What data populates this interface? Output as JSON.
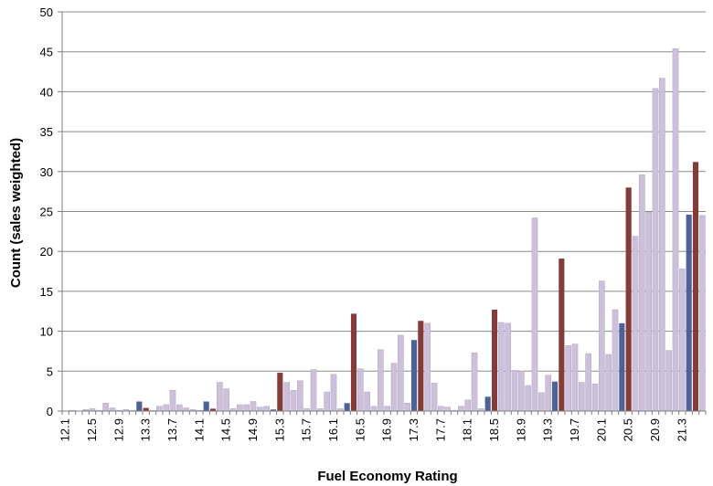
{
  "chart_data": {
    "type": "bar",
    "xlabel": "Fuel Economy Rating",
    "ylabel": "Count (sales weighted)",
    "ylim": [
      0,
      50
    ],
    "y_ticks": [
      0,
      5,
      10,
      15,
      20,
      25,
      30,
      35,
      40,
      45,
      50
    ],
    "x_tick_labels": [
      "12.1",
      "12.5",
      "12.9",
      "13.3",
      "13.7",
      "14.1",
      "14.5",
      "14.9",
      "15.3",
      "15.7",
      "16.1",
      "16.5",
      "16.9",
      "17.3",
      "17.7",
      "18.1",
      "18.5",
      "18.9",
      "19.3",
      "19.7",
      "20.1",
      "20.5",
      "20.9",
      "21.3"
    ],
    "grid": "horizontal",
    "legend": "none",
    "colors": {
      "light": "#ccc0da",
      "blue": "#4f6199",
      "red": "#843c39",
      "grid": "#8c8c8c",
      "axis": "#7f7f7f"
    },
    "bars": [
      {
        "v": 0,
        "c": "light"
      },
      {
        "v": 0.1,
        "c": "light"
      },
      {
        "v": 0,
        "c": "light"
      },
      {
        "v": 0.2,
        "c": "light"
      },
      {
        "v": 0.3,
        "c": "light"
      },
      {
        "v": 0.1,
        "c": "light"
      },
      {
        "v": 1.0,
        "c": "light"
      },
      {
        "v": 0.4,
        "c": "light"
      },
      {
        "v": 0.1,
        "c": "light"
      },
      {
        "v": 0.2,
        "c": "light"
      },
      {
        "v": 0.1,
        "c": "light"
      },
      {
        "v": 1.2,
        "c": "blue"
      },
      {
        "v": 0.4,
        "c": "red"
      },
      {
        "v": 0.1,
        "c": "light"
      },
      {
        "v": 0.6,
        "c": "light"
      },
      {
        "v": 0.8,
        "c": "light"
      },
      {
        "v": 2.6,
        "c": "light"
      },
      {
        "v": 0.8,
        "c": "light"
      },
      {
        "v": 0.4,
        "c": "light"
      },
      {
        "v": 0.2,
        "c": "light"
      },
      {
        "v": 0.1,
        "c": "light"
      },
      {
        "v": 1.2,
        "c": "blue"
      },
      {
        "v": 0.3,
        "c": "red"
      },
      {
        "v": 3.6,
        "c": "light"
      },
      {
        "v": 2.8,
        "c": "light"
      },
      {
        "v": 0.3,
        "c": "light"
      },
      {
        "v": 0.8,
        "c": "light"
      },
      {
        "v": 0.8,
        "c": "light"
      },
      {
        "v": 1.2,
        "c": "light"
      },
      {
        "v": 0.5,
        "c": "light"
      },
      {
        "v": 0.6,
        "c": "light"
      },
      {
        "v": 0.2,
        "c": "blue"
      },
      {
        "v": 4.8,
        "c": "red"
      },
      {
        "v": 3.6,
        "c": "light"
      },
      {
        "v": 2.6,
        "c": "light"
      },
      {
        "v": 3.8,
        "c": "light"
      },
      {
        "v": 0.3,
        "c": "light"
      },
      {
        "v": 5.2,
        "c": "light"
      },
      {
        "v": 0.3,
        "c": "light"
      },
      {
        "v": 2.4,
        "c": "light"
      },
      {
        "v": 4.6,
        "c": "light"
      },
      {
        "v": 0.3,
        "c": "light"
      },
      {
        "v": 1.0,
        "c": "blue"
      },
      {
        "v": 12.2,
        "c": "red"
      },
      {
        "v": 5.3,
        "c": "light"
      },
      {
        "v": 2.4,
        "c": "light"
      },
      {
        "v": 0.6,
        "c": "light"
      },
      {
        "v": 7.7,
        "c": "light"
      },
      {
        "v": 0.6,
        "c": "light"
      },
      {
        "v": 6.0,
        "c": "light"
      },
      {
        "v": 9.5,
        "c": "light"
      },
      {
        "v": 1.0,
        "c": "light"
      },
      {
        "v": 8.9,
        "c": "blue"
      },
      {
        "v": 11.3,
        "c": "red"
      },
      {
        "v": 11.0,
        "c": "light"
      },
      {
        "v": 3.5,
        "c": "light"
      },
      {
        "v": 0.6,
        "c": "light"
      },
      {
        "v": 0.5,
        "c": "light"
      },
      {
        "v": 0.1,
        "c": "light"
      },
      {
        "v": 0.6,
        "c": "light"
      },
      {
        "v": 1.4,
        "c": "light"
      },
      {
        "v": 7.3,
        "c": "light"
      },
      {
        "v": 0.3,
        "c": "light"
      },
      {
        "v": 1.8,
        "c": "blue"
      },
      {
        "v": 12.7,
        "c": "red"
      },
      {
        "v": 11.1,
        "c": "light"
      },
      {
        "v": 11.0,
        "c": "light"
      },
      {
        "v": 5.1,
        "c": "light"
      },
      {
        "v": 5.0,
        "c": "light"
      },
      {
        "v": 3.2,
        "c": "light"
      },
      {
        "v": 24.2,
        "c": "light"
      },
      {
        "v": 2.3,
        "c": "light"
      },
      {
        "v": 4.5,
        "c": "light"
      },
      {
        "v": 3.7,
        "c": "blue"
      },
      {
        "v": 19.1,
        "c": "red"
      },
      {
        "v": 8.2,
        "c": "light"
      },
      {
        "v": 8.4,
        "c": "light"
      },
      {
        "v": 3.6,
        "c": "light"
      },
      {
        "v": 7.2,
        "c": "light"
      },
      {
        "v": 3.4,
        "c": "light"
      },
      {
        "v": 16.3,
        "c": "light"
      },
      {
        "v": 7.1,
        "c": "light"
      },
      {
        "v": 12.7,
        "c": "light"
      },
      {
        "v": 11.0,
        "c": "blue"
      },
      {
        "v": 28.0,
        "c": "red"
      },
      {
        "v": 21.9,
        "c": "light"
      },
      {
        "v": 29.6,
        "c": "light"
      },
      {
        "v": 24.9,
        "c": "light"
      },
      {
        "v": 40.4,
        "c": "light"
      },
      {
        "v": 41.7,
        "c": "light"
      },
      {
        "v": 7.6,
        "c": "light"
      },
      {
        "v": 45.4,
        "c": "light"
      },
      {
        "v": 17.8,
        "c": "light"
      },
      {
        "v": 24.6,
        "c": "blue"
      },
      {
        "v": 31.2,
        "c": "red"
      },
      {
        "v": 24.5,
        "c": "light"
      }
    ]
  }
}
